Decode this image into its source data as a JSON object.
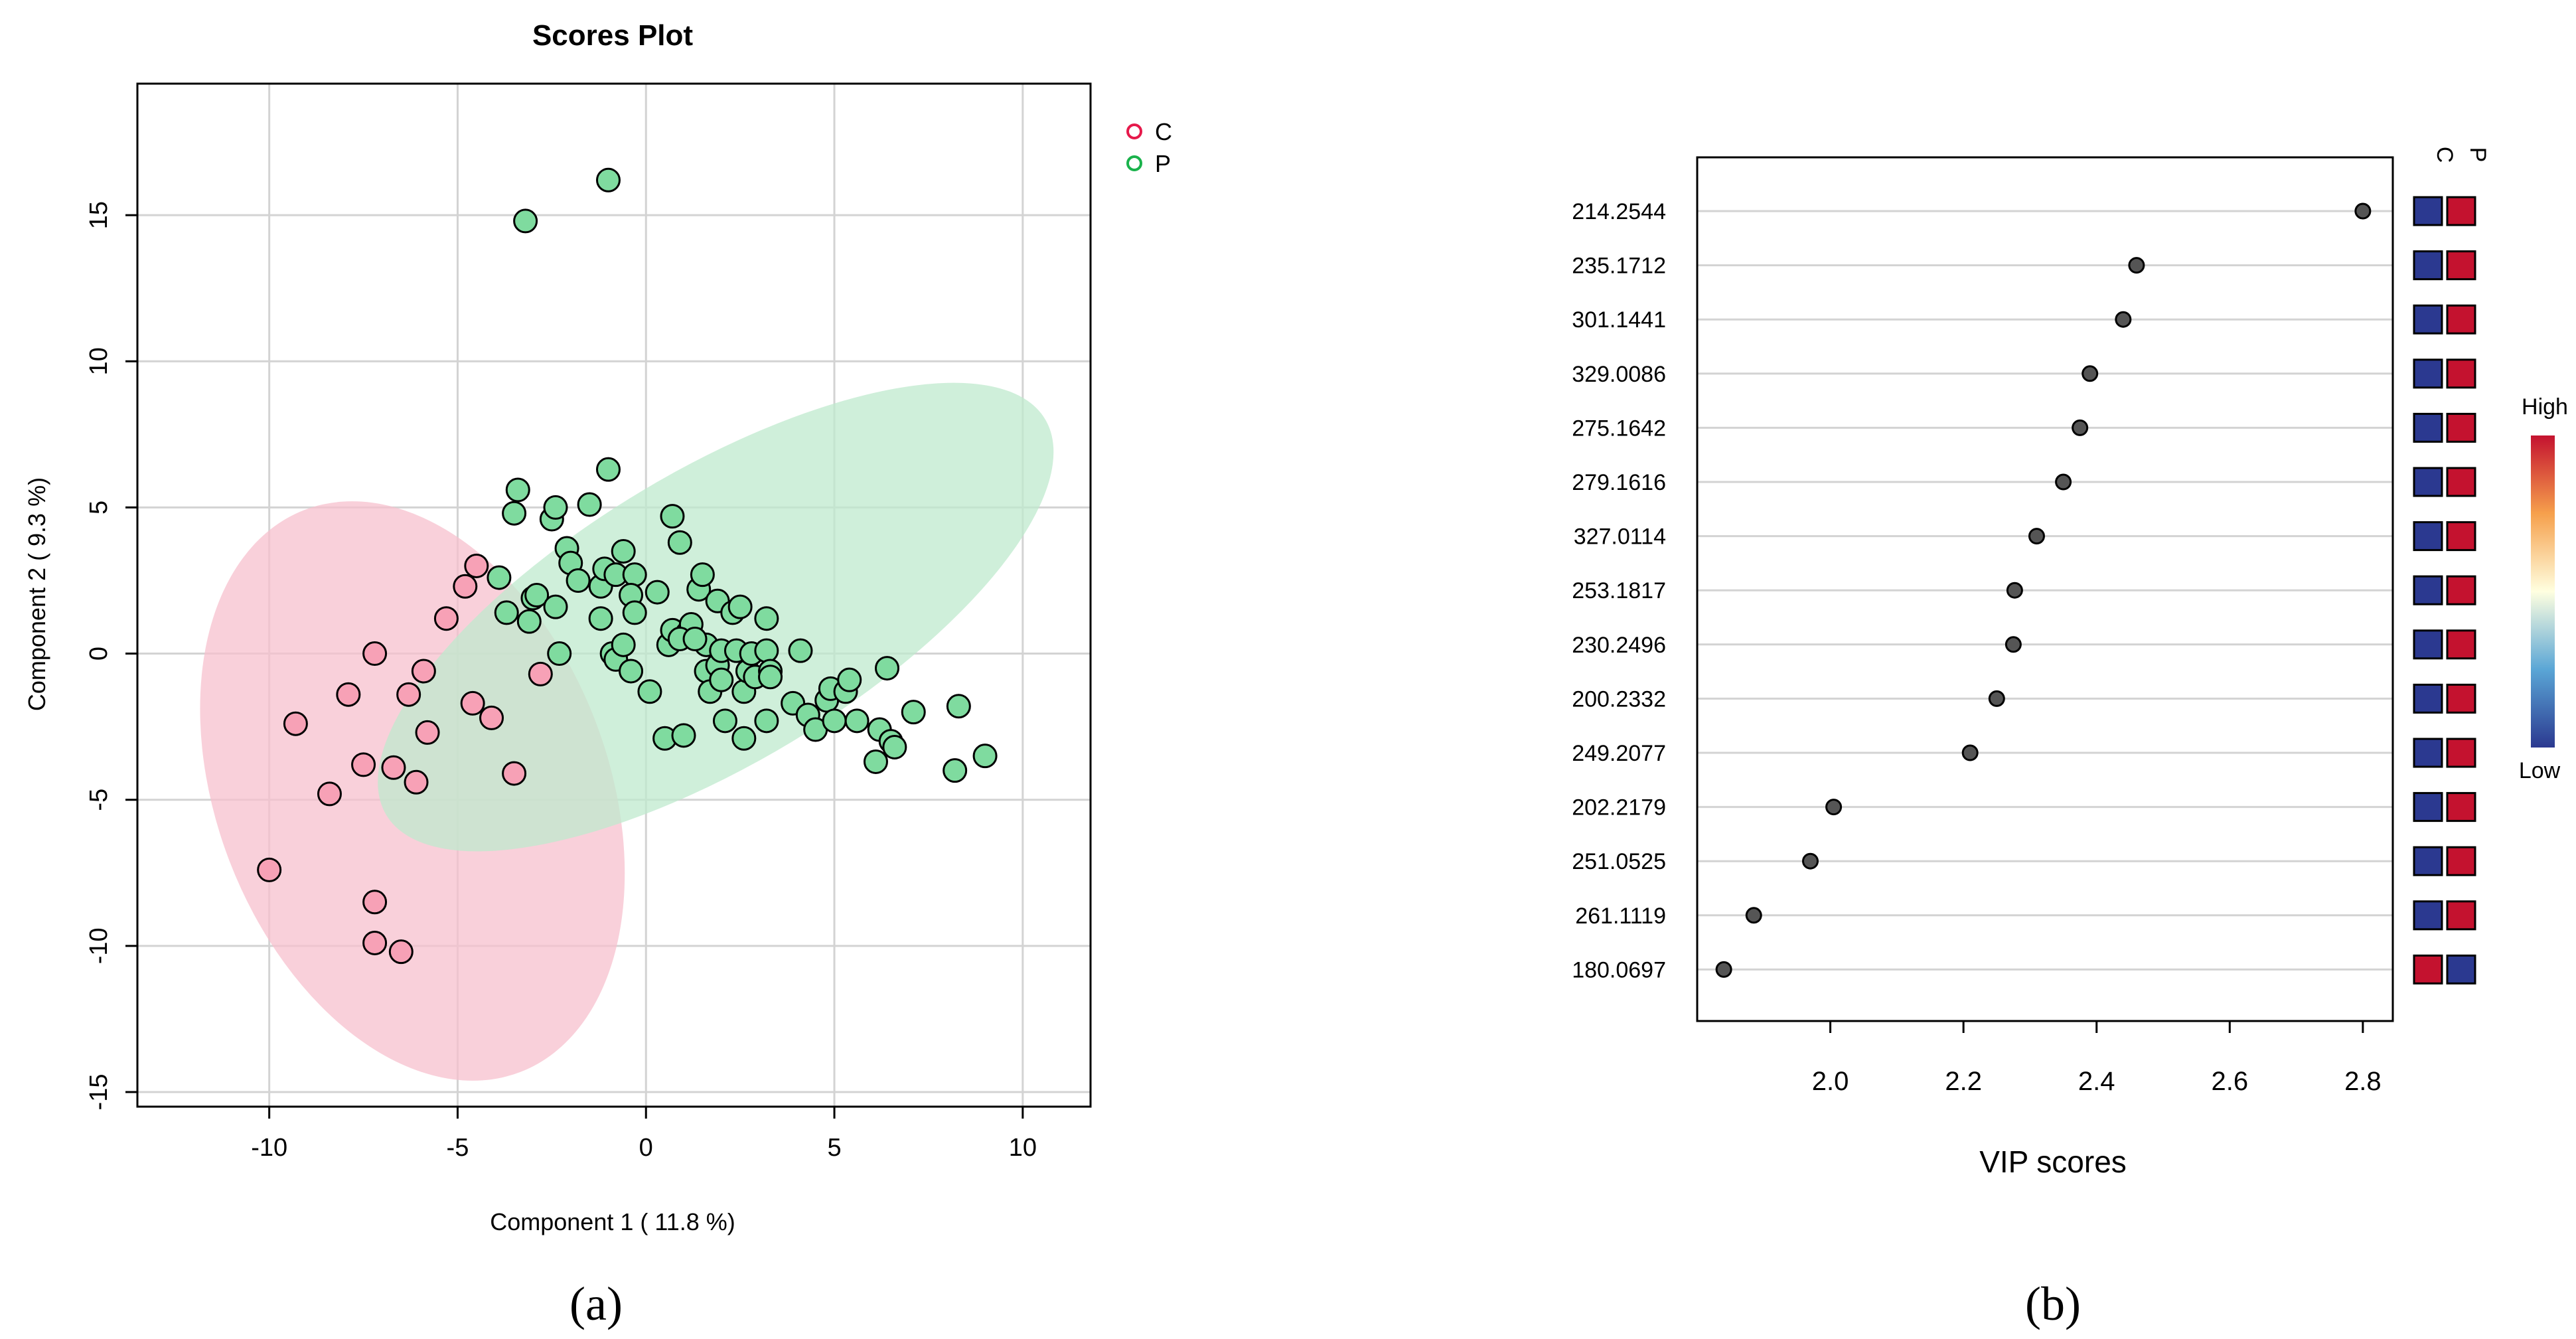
{
  "panel_labels": {
    "a": "(a)",
    "b": "(b)"
  },
  "colors": {
    "C": "#f7a1b6",
    "P": "#7fdb9f",
    "C_ellipse": "#f7c0cd",
    "P_ellipse": "#bfe9cd",
    "C_legend": "#e6194b",
    "P_legend": "#19b24b",
    "heat_low": "#2b3990",
    "heat_high": "#c4122f",
    "vip_point": "#555555"
  },
  "chart_data": [
    {
      "type": "scatter",
      "title": "Scores Plot",
      "xlabel": "Component 1 ( 11.8 %)",
      "ylabel": "Component 2 ( 9.3 %)",
      "xlim": [
        -13.5,
        11.8
      ],
      "ylim": [
        -15.5,
        19.5
      ],
      "xticks": [
        -10,
        -5,
        0,
        5,
        10
      ],
      "yticks": [
        -15,
        -10,
        -5,
        0,
        5,
        10,
        15
      ],
      "xtick_labels": [
        "-10",
        "-5",
        "0",
        "5",
        "10"
      ],
      "ytick_labels": [
        "-15",
        "-10",
        "-5",
        "0",
        "5",
        "10",
        "15"
      ],
      "grid": true,
      "legend": {
        "position": "top-right",
        "entries": [
          "C",
          "P"
        ]
      },
      "series": [
        {
          "name": "C",
          "ellipse": {
            "cx": -6.2,
            "cy": -4.7,
            "rx": 5.2,
            "ry": 10.3,
            "angle_deg": -21
          },
          "points": [
            [
              -10.0,
              -7.4
            ],
            [
              -9.3,
              -2.4
            ],
            [
              -8.4,
              -4.8
            ],
            [
              -7.9,
              -1.4
            ],
            [
              -7.5,
              -3.8
            ],
            [
              -7.2,
              -0.0
            ],
            [
              -7.2,
              -8.5
            ],
            [
              -7.2,
              -9.9
            ],
            [
              -6.7,
              -3.9
            ],
            [
              -6.3,
              -1.4
            ],
            [
              -6.1,
              -4.4
            ],
            [
              -5.9,
              -0.6
            ],
            [
              -5.8,
              -2.7
            ],
            [
              -6.5,
              -10.2
            ],
            [
              -5.3,
              1.2
            ],
            [
              -4.8,
              2.3
            ],
            [
              -4.6,
              -1.7
            ],
            [
              -4.1,
              -2.2
            ],
            [
              -3.5,
              -4.1
            ],
            [
              -2.8,
              -0.7
            ],
            [
              -4.5,
              3.0
            ]
          ]
        },
        {
          "name": "P",
          "ellipse": {
            "cx": 1.85,
            "cy": 1.25,
            "rx": 10.2,
            "ry": 5.0,
            "angle_deg": -31
          },
          "points": [
            [
              -3.2,
              14.8
            ],
            [
              -1.0,
              16.2
            ],
            [
              -3.4,
              5.6
            ],
            [
              -3.5,
              4.8
            ],
            [
              -2.5,
              4.6
            ],
            [
              -2.4,
              5.0
            ],
            [
              -1.5,
              5.1
            ],
            [
              -1.0,
              6.3
            ],
            [
              -2.1,
              3.6
            ],
            [
              -2.0,
              3.1
            ],
            [
              -1.8,
              2.5
            ],
            [
              -1.2,
              2.3
            ],
            [
              -1.1,
              2.9
            ],
            [
              -0.8,
              2.7
            ],
            [
              -0.6,
              3.5
            ],
            [
              -0.3,
              2.7
            ],
            [
              -0.4,
              2.0
            ],
            [
              -0.3,
              1.4
            ],
            [
              -3.9,
              2.6
            ],
            [
              -3.7,
              1.4
            ],
            [
              -3.0,
              1.9
            ],
            [
              -3.1,
              1.1
            ],
            [
              -2.9,
              2.0
            ],
            [
              -2.4,
              1.6
            ],
            [
              -2.3,
              0.0
            ],
            [
              -1.2,
              1.2
            ],
            [
              -0.9,
              0.0
            ],
            [
              -0.8,
              -0.2
            ],
            [
              -0.6,
              0.3
            ],
            [
              -0.4,
              -0.6
            ],
            [
              0.1,
              -1.3
            ],
            [
              0.3,
              2.1
            ],
            [
              0.6,
              0.3
            ],
            [
              0.7,
              4.7
            ],
            [
              0.9,
              3.8
            ],
            [
              0.7,
              0.8
            ],
            [
              0.5,
              -2.9
            ],
            [
              1.0,
              -2.8
            ],
            [
              1.1,
              0.7
            ],
            [
              1.2,
              1.0
            ],
            [
              1.4,
              2.2
            ],
            [
              1.5,
              2.7
            ],
            [
              1.6,
              0.3
            ],
            [
              1.6,
              -0.6
            ],
            [
              1.7,
              -1.3
            ],
            [
              1.9,
              1.8
            ],
            [
              1.9,
              -0.4
            ],
            [
              2.0,
              0.1
            ],
            [
              2.0,
              -0.9
            ],
            [
              2.1,
              -2.3
            ],
            [
              2.3,
              1.4
            ],
            [
              2.4,
              0.1
            ],
            [
              2.5,
              1.6
            ],
            [
              2.6,
              -1.3
            ],
            [
              2.6,
              -2.9
            ],
            [
              2.7,
              -0.6
            ],
            [
              2.8,
              0.0
            ],
            [
              2.9,
              -0.8
            ],
            [
              3.2,
              1.2
            ],
            [
              3.2,
              -2.3
            ],
            [
              3.2,
              0.1
            ],
            [
              3.3,
              -0.6
            ],
            [
              3.3,
              -0.8
            ],
            [
              3.9,
              -1.7
            ],
            [
              4.1,
              0.1
            ],
            [
              4.3,
              -2.1
            ],
            [
              4.5,
              -2.6
            ],
            [
              4.8,
              -1.6
            ],
            [
              4.9,
              -1.2
            ],
            [
              5.0,
              -2.3
            ],
            [
              5.3,
              -1.3
            ],
            [
              5.4,
              -0.9
            ],
            [
              5.6,
              -2.3
            ],
            [
              6.1,
              -3.7
            ],
            [
              6.2,
              -2.6
            ],
            [
              6.4,
              -0.5
            ],
            [
              6.5,
              -3.0
            ],
            [
              6.6,
              -3.2
            ],
            [
              7.1,
              -2.0
            ],
            [
              8.2,
              -4.0
            ],
            [
              8.3,
              -1.8
            ],
            [
              9.0,
              -3.5
            ],
            [
              0.9,
              0.5
            ],
            [
              1.3,
              0.5
            ]
          ]
        }
      ]
    },
    {
      "type": "dot",
      "title": "",
      "xlabel": "VIP scores",
      "xlim": [
        1.8,
        2.845
      ],
      "xticks": [
        2.0,
        2.2,
        2.4,
        2.6,
        2.8
      ],
      "xtick_labels": [
        "2.0",
        "2.2",
        "2.4",
        "2.6",
        "2.8"
      ],
      "grid": true,
      "features": [
        {
          "label": "214.2544",
          "vip": 2.8,
          "C": "low",
          "P": "high"
        },
        {
          "label": "235.1712",
          "vip": 2.46,
          "C": "low",
          "P": "high"
        },
        {
          "label": "301.1441",
          "vip": 2.44,
          "C": "low",
          "P": "high"
        },
        {
          "label": "329.0086",
          "vip": 2.39,
          "C": "low",
          "P": "high"
        },
        {
          "label": "275.1642",
          "vip": 2.375,
          "C": "low",
          "P": "high"
        },
        {
          "label": "279.1616",
          "vip": 2.35,
          "C": "low",
          "P": "high"
        },
        {
          "label": "327.0114",
          "vip": 2.31,
          "C": "low",
          "P": "high"
        },
        {
          "label": "253.1817",
          "vip": 2.277,
          "C": "low",
          "P": "high"
        },
        {
          "label": "230.2496",
          "vip": 2.275,
          "C": "low",
          "P": "high"
        },
        {
          "label": "200.2332",
          "vip": 2.25,
          "C": "low",
          "P": "high"
        },
        {
          "label": "249.2077",
          "vip": 2.21,
          "C": "low",
          "P": "high"
        },
        {
          "label": "202.2179",
          "vip": 2.005,
          "C": "low",
          "P": "high"
        },
        {
          "label": "251.0525",
          "vip": 1.97,
          "C": "low",
          "P": "high"
        },
        {
          "label": "261.1119",
          "vip": 1.885,
          "C": "low",
          "P": "high"
        },
        {
          "label": "180.0697",
          "vip": 1.84,
          "C": "high",
          "P": "low"
        }
      ],
      "heatmap_columns": [
        "C",
        "P"
      ],
      "colorbar": {
        "high_label": "High",
        "low_label": "Low"
      }
    }
  ]
}
